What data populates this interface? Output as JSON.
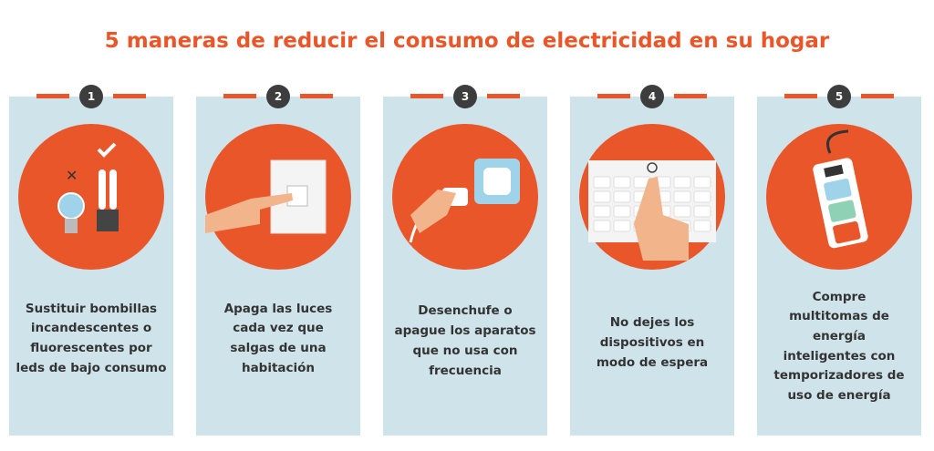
{
  "title": "5 maneras de reducir el consumo de electricidad en su hogar",
  "cards": [
    {
      "number": "1",
      "lines": [
        "Sustituir bombillas",
        "incandescentes o",
        "fluorescentes por",
        "leds de bajo consumo"
      ]
    },
    {
      "number": "2",
      "lines": [
        "Apaga las luces",
        "cada vez que",
        "salgas de una",
        "habitación"
      ]
    },
    {
      "number": "3",
      "lines": [
        "Desenchufe o",
        "apague los aparatos",
        "que no usa con",
        "frecuencia"
      ]
    },
    {
      "number": "4",
      "lines": [
        "No dejes los",
        "dispositivos en",
        "modo de espera"
      ]
    },
    {
      "number": "5",
      "lines": [
        "Compre",
        "multitomas de",
        "energía",
        "inteligentes con",
        "temporizadores de",
        "uso de energía"
      ]
    }
  ]
}
